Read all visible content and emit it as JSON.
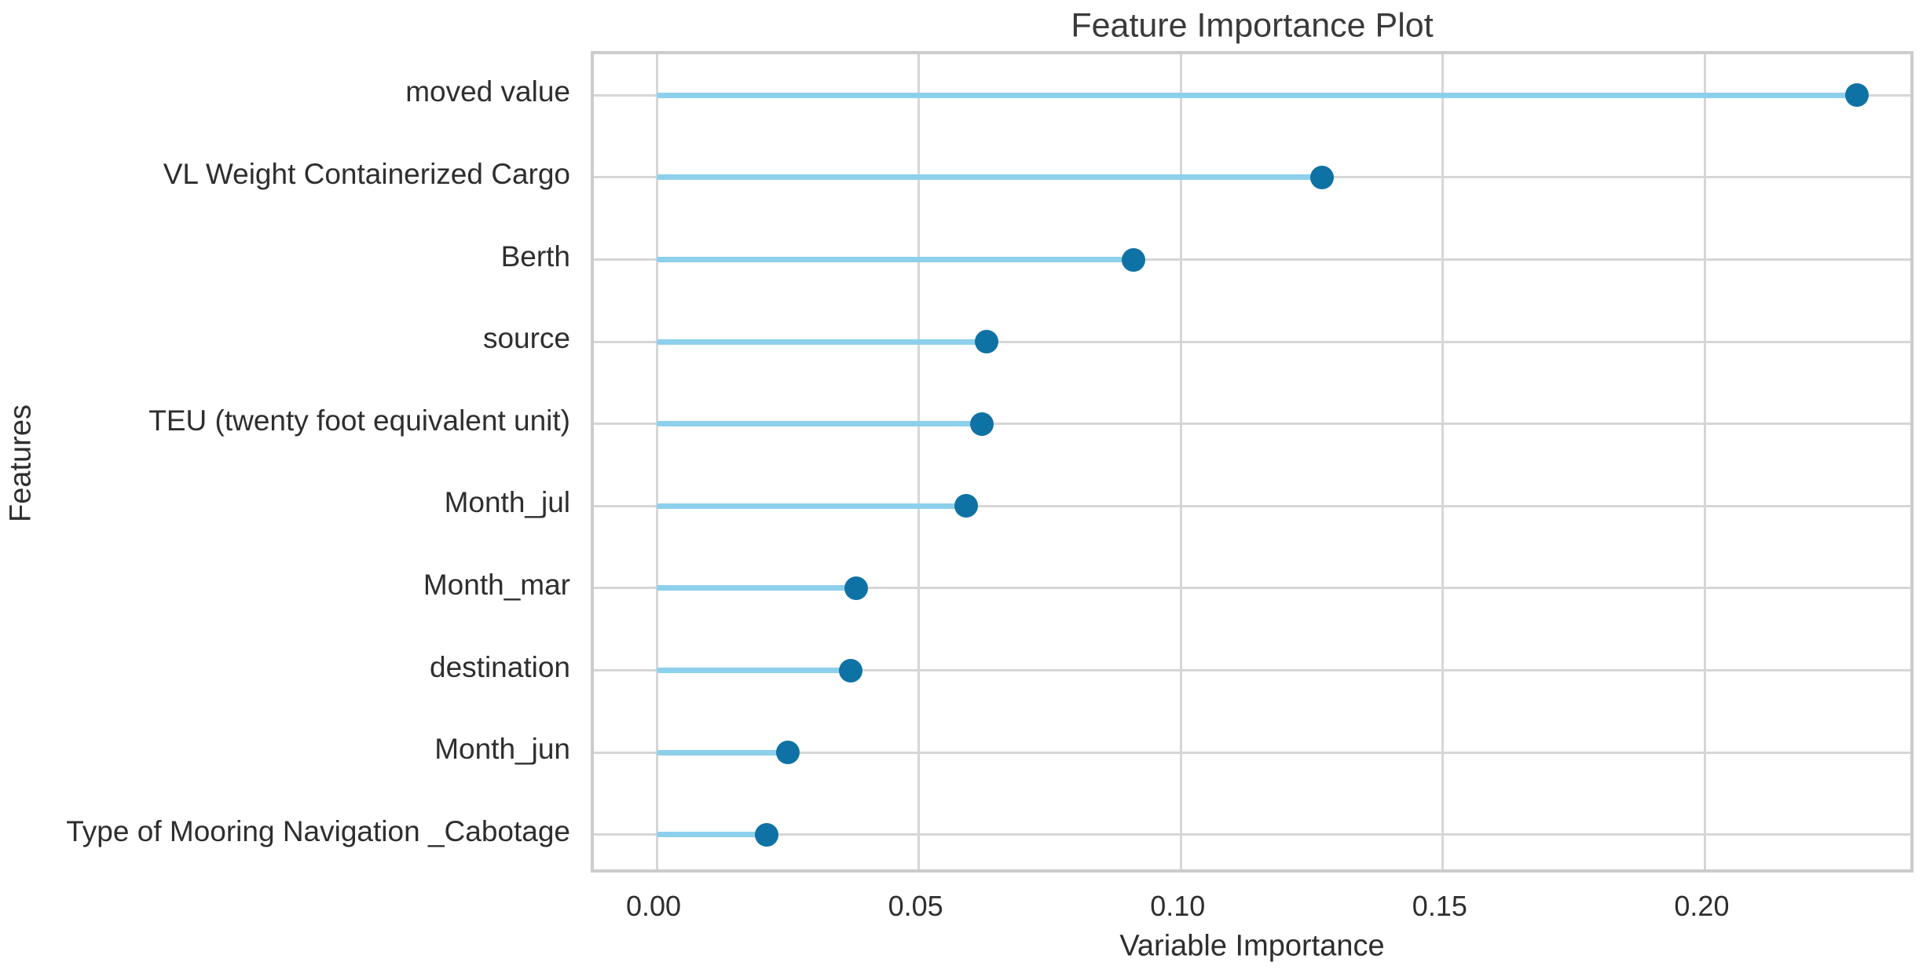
{
  "chart_data": {
    "type": "bar",
    "style": "lollipop",
    "orientation": "horizontal",
    "title": "Feature Importance Plot",
    "xlabel": "Variable Importance",
    "ylabel": "Features",
    "categories": [
      "moved value",
      "VL Weight Containerized Cargo",
      "Berth",
      "source",
      "TEU (twenty foot equivalent unit)",
      "Month_jul",
      "Month_mar",
      "destination",
      "Month_jun",
      "Type of Mooring Navigation _Cabotage"
    ],
    "values": [
      0.229,
      0.127,
      0.091,
      0.063,
      0.062,
      0.059,
      0.038,
      0.037,
      0.025,
      0.021
    ],
    "xticks": [
      0.0,
      0.05,
      0.1,
      0.15,
      0.2
    ],
    "xtick_labels": [
      "0.00",
      "0.05",
      "0.10",
      "0.15",
      "0.20"
    ],
    "xlim": [
      -0.012,
      0.2404
    ],
    "grid": true,
    "legend": false
  },
  "colors": {
    "stem": "#8dd0ec",
    "dot": "#0f72a5",
    "grid": "#d6d6d6",
    "panel_border": "#cccccc",
    "text": "#2e2e2e",
    "title": "#3a3a3a",
    "background": "#ffffff"
  }
}
